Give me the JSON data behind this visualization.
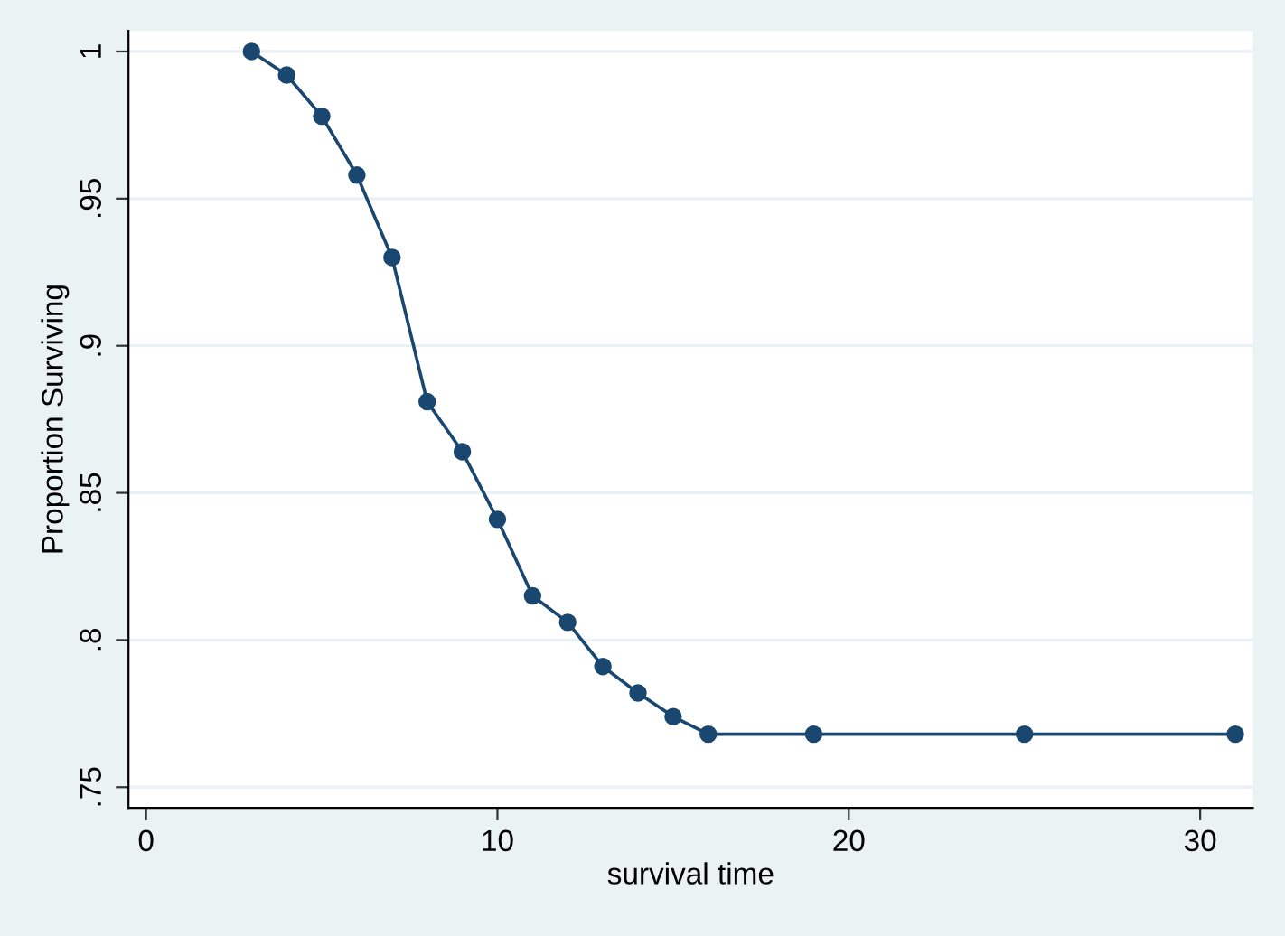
{
  "chart_data": {
    "type": "line",
    "xlabel": "survival time",
    "ylabel": "Proportion Surviving",
    "x": [
      3,
      4,
      5,
      6,
      7,
      8,
      9,
      10,
      11,
      12,
      13,
      14,
      15,
      16,
      19,
      25,
      31
    ],
    "series": [
      {
        "color": "#1a476f",
        "values": [
          1.0,
          0.992,
          0.978,
          0.958,
          0.93,
          0.881,
          0.864,
          0.841,
          0.815,
          0.806,
          0.791,
          0.782,
          0.774,
          0.768,
          0.768,
          0.768,
          0.768
        ]
      }
    ],
    "marker": "circle",
    "line_style": "solid",
    "grid": "y",
    "xlim": [
      -0.5,
      31.5
    ],
    "ylim": [
      0.743,
      1.007
    ],
    "xticks": [
      0,
      10,
      20,
      30
    ],
    "yticks": [
      {
        "value": 0.75,
        "label": ".75"
      },
      {
        "value": 0.8,
        "label": ".8"
      },
      {
        "value": 0.85,
        "label": ".85"
      },
      {
        "value": 0.9,
        "label": ".9"
      },
      {
        "value": 0.95,
        "label": ".95"
      },
      {
        "value": 1,
        "label": "1"
      }
    ]
  }
}
